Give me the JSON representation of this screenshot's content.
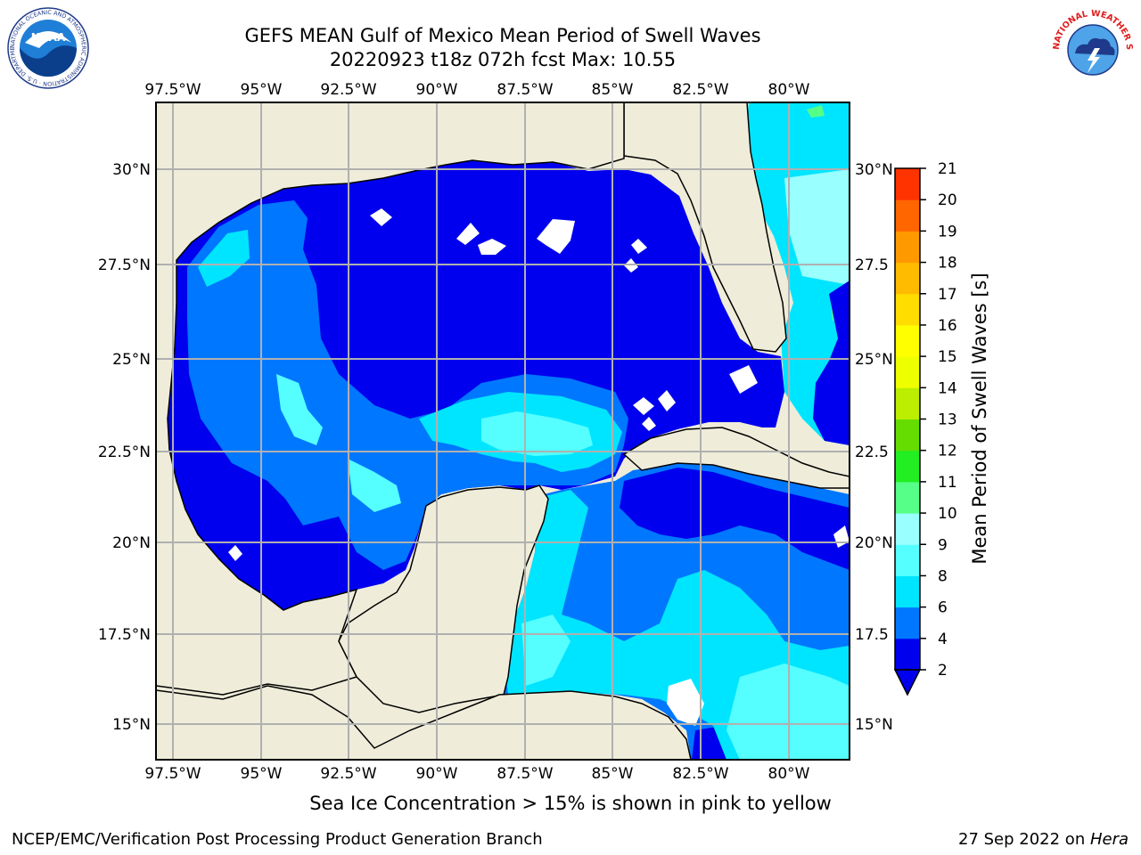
{
  "header": {
    "title_line1": "GEFS MEAN Gulf of Mexico Mean Period of Swell Waves",
    "title_line2": "20220923 t18z 072h fcst   Max: 10.55"
  },
  "logos": {
    "left": "noaa-logo",
    "right": "national-weather-service-logo",
    "left_text": "NOAA",
    "left_ring_text": "NATIONAL OCEANIC AND ATMOSPHERIC ADMINISTRATION · U.S. DEPARTMENT OF COMMERCE",
    "right_ring_text": "NATIONAL WEATHER SERVICE"
  },
  "map": {
    "lon_ticks": [
      "97.5°W",
      "95°W",
      "92.5°W",
      "90°W",
      "87.5°W",
      "85°W",
      "82.5°W",
      "80°W"
    ],
    "lat_ticks_left": [
      "30°N",
      "27.5°N",
      "25°N",
      "22.5°N",
      "20°N",
      "17.5°N",
      "15°N"
    ],
    "lat_ticks_right": [
      "30°N",
      "27.5",
      "25°N",
      "22.5",
      "20°N",
      "17.5",
      "15°N"
    ],
    "land_color": "#efedda",
    "grid_color": "#b0b0b0"
  },
  "colorbar": {
    "label": "Mean Period of Swell Waves [s]",
    "ticks": [
      "2",
      "4",
      "6",
      "8",
      "9",
      "10",
      "11",
      "12",
      "13",
      "14",
      "15",
      "16",
      "17",
      "18",
      "19",
      "20",
      "21"
    ],
    "colors": [
      "#0000ee",
      "#0077ff",
      "#00e5ff",
      "#55ffff",
      "#99ffff",
      "#55ff88",
      "#22ee22",
      "#66dd00",
      "#bbee00",
      "#eeff00",
      "#ffff00",
      "#ffdd00",
      "#ffbb00",
      "#ff9900",
      "#ff6600",
      "#ff3300",
      "#ff0000"
    ]
  },
  "caption": "Sea Ice Concentration > 15% is shown in pink to yellow",
  "footer": {
    "left": "NCEP/EMC/Verification Post Processing Product Generation Branch",
    "right_date": "27 Sep 2022 on ",
    "right_host": "Hera"
  }
}
